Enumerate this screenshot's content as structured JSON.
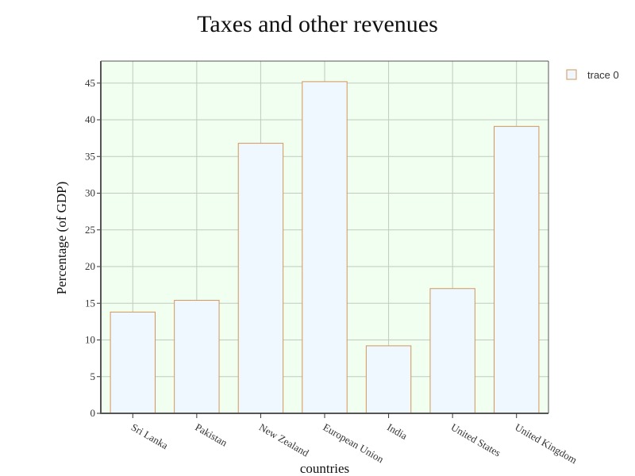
{
  "chart_data": {
    "type": "bar",
    "title": "Taxes and other revenues",
    "xlabel": "countries",
    "ylabel": "Percentage (of GDP)",
    "categories": [
      "Sri Lanka",
      "Pakistan",
      "New Zealand",
      "European Union",
      "India",
      "United States",
      "United Kingdom"
    ],
    "series": [
      {
        "name": "trace 0",
        "values": [
          13.8,
          15.4,
          36.8,
          45.2,
          9.2,
          17.0,
          39.1
        ]
      }
    ],
    "ylim": [
      0,
      48
    ],
    "yticks": [
      0,
      5,
      10,
      15,
      20,
      25,
      30,
      35,
      40,
      45
    ],
    "grid": true,
    "legend": "top-right",
    "colors": {
      "plot_background": "#f0fff0",
      "bar_fill": "#f0f8ff",
      "bar_stroke": "#d2955a",
      "grid": "#c2cac2",
      "axis": "#555555"
    }
  }
}
